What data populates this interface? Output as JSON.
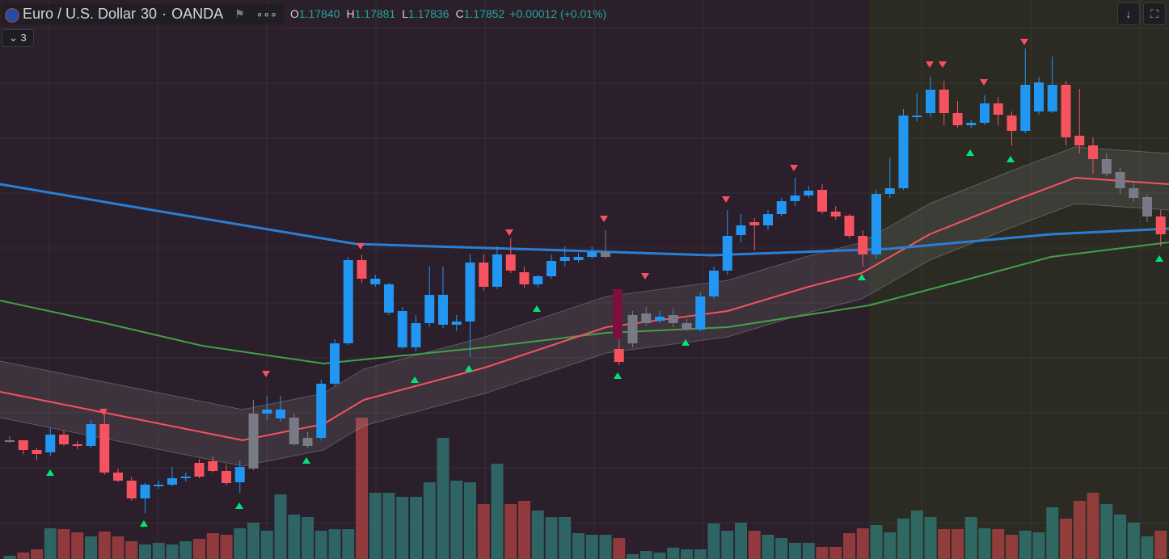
{
  "header": {
    "symbol": "Euro / U.S. Dollar",
    "interval": "30",
    "exchange": "OANDA",
    "ohlc": [
      {
        "label": "O",
        "value": "1.17840"
      },
      {
        "label": "H",
        "value": "1.17881"
      },
      {
        "label": "L",
        "value": "1.17836"
      },
      {
        "label": "C",
        "value": "1.17852"
      }
    ],
    "change": "+0.00012 (+0.01%)"
  },
  "indicators": {
    "count": "3"
  }
}
